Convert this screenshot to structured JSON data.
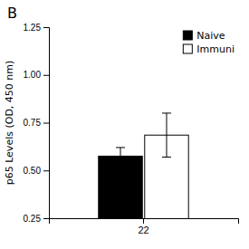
{
  "chart_data": {
    "type": "bar",
    "title": "B",
    "y_label": "p65 Levels (OD, 450 nm)",
    "categories": [
      "22"
    ],
    "series": [
      {
        "name": "Naive",
        "color": "#000000",
        "values": [
          0.575
        ],
        "errors": [
          0.045
        ]
      },
      {
        "name": "Immuni",
        "color": "#ffffff",
        "values": [
          0.685
        ],
        "errors": [
          0.115
        ]
      }
    ],
    "ylim": [
      0.25,
      1.25
    ],
    "yticks": [
      0.25,
      {
        "value": 0.5,
        "label": "0.50"
      },
      0.75,
      {
        "value": 1,
        "label": "1.00"
      },
      1.25
    ],
    "legend": "upper right"
  }
}
